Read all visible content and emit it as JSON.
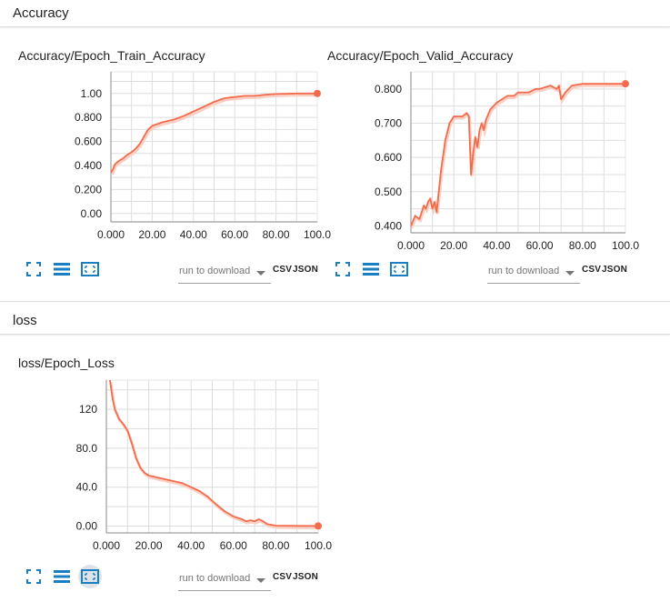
{
  "sections": [
    {
      "label": "Accuracy"
    },
    {
      "label": "loss"
    }
  ],
  "toolbar": {
    "download_placeholder": "run to download",
    "csv_label": "CSV",
    "json_label": "JSON",
    "icons": [
      "fullscreen-icon",
      "list-icon",
      "fit-domain-icon"
    ]
  },
  "colors": {
    "line": "#f26b4a",
    "line_light": "#fbd0c4",
    "grid": "#dedede",
    "axis": "#9e9e9e",
    "icon": "#1a7fc2"
  },
  "chart_data": [
    {
      "type": "line",
      "title": "Accuracy/Epoch_Train_Accuracy",
      "xlim": [
        0,
        100
      ],
      "ylim": [
        -0.07,
        1.18
      ],
      "xticks": [
        0,
        20,
        40,
        60,
        80,
        100
      ],
      "xtick_labels": [
        "0.000",
        "20.00",
        "40.00",
        "60.00",
        "80.00",
        "100.0"
      ],
      "yticks": [
        0,
        0.2,
        0.4,
        0.6,
        0.8,
        1.0
      ],
      "ytick_labels": [
        "0.00",
        "0.200",
        "0.400",
        "0.600",
        "0.800",
        "1.00"
      ],
      "series": [
        {
          "x": [
            0,
            1,
            2,
            4,
            6,
            8,
            10,
            12,
            14,
            16,
            18,
            20,
            25,
            30,
            35,
            40,
            45,
            50,
            55,
            60,
            65,
            70,
            75,
            80,
            90,
            100
          ],
          "y": [
            0.34,
            0.37,
            0.41,
            0.44,
            0.46,
            0.49,
            0.51,
            0.54,
            0.58,
            0.64,
            0.7,
            0.73,
            0.76,
            0.78,
            0.81,
            0.85,
            0.89,
            0.93,
            0.96,
            0.97,
            0.98,
            0.98,
            0.99,
            0.995,
            1.0,
            1.0
          ]
        }
      ]
    },
    {
      "type": "line",
      "title": "Accuracy/Epoch_Valid_Accuracy",
      "xlim": [
        0,
        100
      ],
      "ylim": [
        0.38,
        0.85
      ],
      "xticks": [
        0,
        20,
        40,
        60,
        80,
        100
      ],
      "xtick_labels": [
        "0.000",
        "20.00",
        "40.00",
        "60.00",
        "80.00",
        "100.0"
      ],
      "yticks": [
        0.4,
        0.5,
        0.6,
        0.7,
        0.8
      ],
      "ytick_labels": [
        "0.400",
        "0.500",
        "0.600",
        "0.700",
        "0.800"
      ],
      "series": [
        {
          "x": [
            0,
            2,
            4,
            6,
            7,
            8,
            9,
            10,
            11,
            12,
            14,
            16,
            18,
            20,
            22,
            24,
            26,
            27,
            28,
            29,
            30,
            31,
            32,
            33,
            34,
            35,
            37,
            40,
            45,
            48,
            50,
            55,
            58,
            60,
            65,
            68,
            69,
            70,
            72,
            75,
            80,
            90,
            100
          ],
          "y": [
            0.4,
            0.43,
            0.42,
            0.46,
            0.45,
            0.47,
            0.48,
            0.45,
            0.47,
            0.44,
            0.56,
            0.65,
            0.7,
            0.72,
            0.72,
            0.72,
            0.73,
            0.72,
            0.55,
            0.61,
            0.66,
            0.63,
            0.68,
            0.7,
            0.68,
            0.71,
            0.74,
            0.76,
            0.78,
            0.78,
            0.79,
            0.79,
            0.8,
            0.8,
            0.81,
            0.8,
            0.81,
            0.77,
            0.79,
            0.81,
            0.815,
            0.815,
            0.815
          ]
        }
      ]
    },
    {
      "type": "line",
      "title": "loss/Epoch_Loss",
      "xlim": [
        0,
        100
      ],
      "ylim": [
        -7,
        150
      ],
      "xticks": [
        0,
        20,
        40,
        60,
        80,
        100
      ],
      "xtick_labels": [
        "0.000",
        "20.00",
        "40.00",
        "60.00",
        "80.00",
        "100.0"
      ],
      "yticks": [
        0,
        40,
        80,
        120
      ],
      "ytick_labels": [
        "0.00",
        "40.0",
        "80.0",
        "120"
      ],
      "series": [
        {
          "x": [
            0,
            1,
            2,
            3,
            4,
            6,
            8,
            10,
            12,
            14,
            16,
            18,
            20,
            24,
            28,
            32,
            36,
            40,
            44,
            48,
            52,
            56,
            60,
            64,
            66,
            68,
            70,
            72,
            74,
            76,
            80,
            90,
            100
          ],
          "y": [
            180,
            160,
            145,
            130,
            120,
            110,
            105,
            98,
            85,
            70,
            60,
            55,
            52,
            50,
            48,
            46,
            44,
            40,
            36,
            30,
            22,
            15,
            10,
            7,
            5,
            6,
            5,
            7,
            5,
            2,
            0.5,
            0.2,
            0.1
          ]
        }
      ]
    }
  ]
}
